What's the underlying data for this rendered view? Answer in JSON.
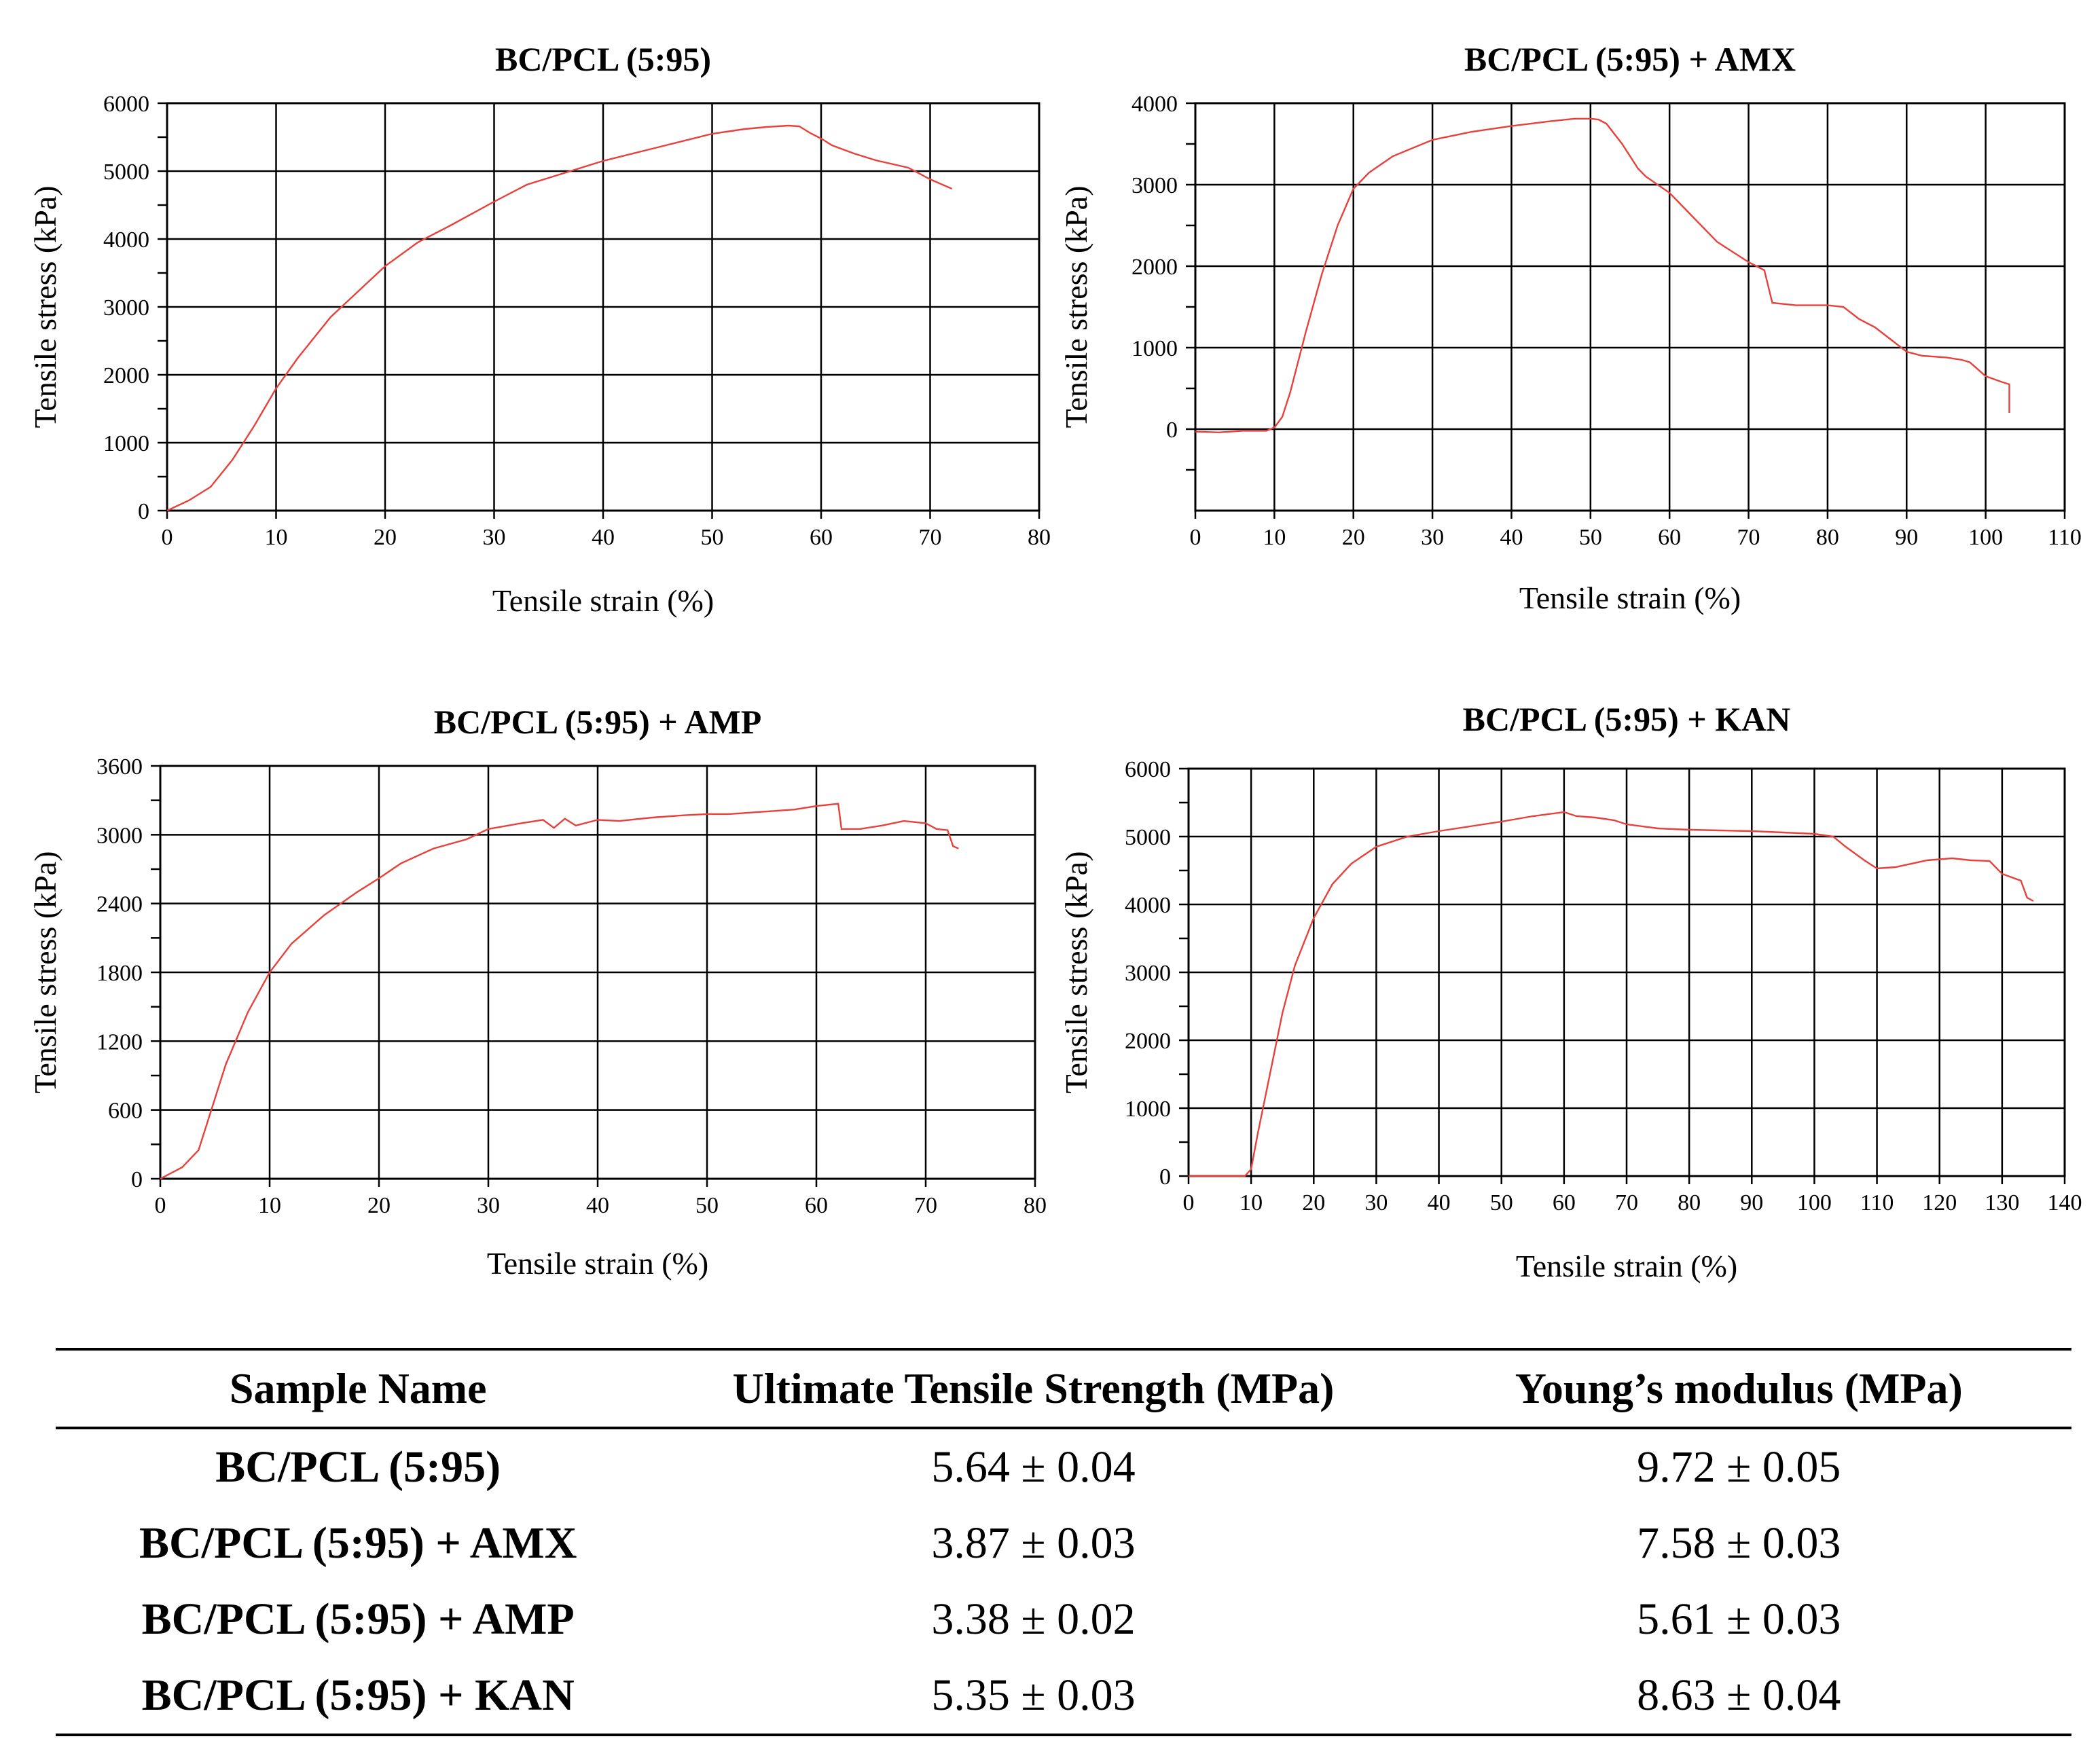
{
  "chart_data": [
    {
      "type": "line",
      "title": "BC/PCL (5:95)",
      "xlabel": "Tensile strain (%)",
      "ylabel": "Tensile stress (kPa)",
      "xlim": [
        0,
        80
      ],
      "ylim": [
        0,
        6000
      ],
      "xticks": [
        0,
        10,
        20,
        30,
        40,
        50,
        60,
        70,
        80
      ],
      "yticks": [
        0,
        1000,
        2000,
        3000,
        4000,
        5000,
        6000
      ],
      "grid": true,
      "series_color": "#e8413c",
      "series": [
        {
          "x": [
            0,
            2,
            4,
            6,
            8,
            10,
            12,
            15,
            18,
            20,
            23,
            26,
            30,
            33,
            36,
            40,
            45,
            50,
            53,
            55,
            57,
            58,
            59,
            60,
            61,
            63,
            65,
            68,
            70,
            72
          ],
          "y": [
            0,
            150,
            350,
            750,
            1250,
            1800,
            2250,
            2850,
            3300,
            3600,
            3950,
            4200,
            4550,
            4800,
            4950,
            5150,
            5350,
            5550,
            5620,
            5650,
            5670,
            5660,
            5560,
            5480,
            5380,
            5260,
            5160,
            5050,
            4880,
            4740
          ]
        }
      ]
    },
    {
      "type": "line",
      "title": "BC/PCL (5:95) + AMX",
      "xlabel": "Tensile strain (%)",
      "ylabel": "Tensile stress (kPa)",
      "xlim": [
        0,
        110
      ],
      "ylim": [
        -1000,
        4000
      ],
      "xticks": [
        0,
        10,
        20,
        30,
        40,
        50,
        60,
        70,
        80,
        90,
        100,
        110
      ],
      "yticks": [
        0,
        1000,
        2000,
        3000,
        4000
      ],
      "grid": true,
      "series_color": "#e8413c",
      "series": [
        {
          "x": [
            0,
            3,
            6,
            9,
            10,
            11,
            12,
            14,
            16,
            18,
            20,
            22,
            25,
            30,
            35,
            40,
            45,
            48,
            50,
            51,
            52,
            54,
            56,
            57,
            60,
            63,
            66,
            70,
            72,
            73,
            76,
            80,
            82,
            84,
            86,
            88,
            90,
            92,
            95,
            97,
            98,
            100,
            102,
            103,
            103
          ],
          "y": [
            -30,
            -40,
            -20,
            -20,
            20,
            150,
            450,
            1200,
            1900,
            2500,
            2950,
            3150,
            3350,
            3550,
            3650,
            3720,
            3780,
            3810,
            3810,
            3800,
            3750,
            3500,
            3200,
            3100,
            2900,
            2600,
            2300,
            2050,
            1950,
            1550,
            1520,
            1520,
            1500,
            1350,
            1250,
            1100,
            950,
            900,
            880,
            850,
            820,
            650,
            580,
            550,
            200
          ]
        }
      ]
    },
    {
      "type": "line",
      "title": "BC/PCL (5:95) + AMP",
      "xlabel": "Tensile strain (%)",
      "ylabel": "Tensile stress (kPa)",
      "xlim": [
        0,
        80
      ],
      "ylim": [
        0,
        3600
      ],
      "xticks": [
        0,
        10,
        20,
        30,
        40,
        50,
        60,
        70,
        80
      ],
      "yticks": [
        0,
        600,
        1200,
        1800,
        2400,
        3000,
        3600
      ],
      "grid": true,
      "series_color": "#e8413c",
      "series": [
        {
          "x": [
            0,
            2,
            3.5,
            5,
            6,
            8,
            10,
            12,
            15,
            18,
            20,
            22,
            25,
            28,
            30,
            33,
            35,
            36,
            37,
            38,
            40,
            42,
            45,
            48,
            50,
            52,
            55,
            58,
            60,
            62,
            62.3,
            64,
            66,
            68,
            70,
            71,
            72,
            72.5,
            73
          ],
          "y": [
            0,
            100,
            250,
            700,
            1000,
            1450,
            1800,
            2050,
            2300,
            2500,
            2620,
            2750,
            2880,
            2960,
            3050,
            3100,
            3130,
            3060,
            3140,
            3080,
            3130,
            3120,
            3150,
            3170,
            3180,
            3180,
            3200,
            3220,
            3250,
            3270,
            3050,
            3050,
            3080,
            3120,
            3100,
            3050,
            3040,
            2900,
            2880
          ]
        }
      ]
    },
    {
      "type": "line",
      "title": "BC/PCL (5:95) + KAN",
      "xlabel": "Tensile strain (%)",
      "ylabel": "Tensile stress (kPa)",
      "xlim": [
        0,
        140
      ],
      "ylim": [
        0,
        6000
      ],
      "xticks": [
        0,
        10,
        20,
        30,
        40,
        50,
        60,
        70,
        80,
        90,
        100,
        110,
        120,
        130,
        140
      ],
      "yticks": [
        0,
        1000,
        2000,
        3000,
        4000,
        5000,
        6000
      ],
      "grid": true,
      "series_color": "#e8413c",
      "series": [
        {
          "x": [
            0,
            5,
            9,
            10,
            11,
            13,
            15,
            17,
            20,
            23,
            26,
            30,
            35,
            40,
            45,
            50,
            55,
            60,
            62,
            65,
            68,
            70,
            75,
            80,
            85,
            90,
            95,
            100,
            103,
            105,
            108,
            110,
            113,
            118,
            122,
            125,
            128,
            130,
            133,
            134,
            135
          ],
          "y": [
            0,
            0,
            0,
            100,
            600,
            1500,
            2400,
            3100,
            3800,
            4300,
            4600,
            4850,
            5000,
            5080,
            5150,
            5220,
            5300,
            5360,
            5300,
            5280,
            5240,
            5180,
            5120,
            5100,
            5090,
            5080,
            5060,
            5040,
            5000,
            4850,
            4650,
            4530,
            4550,
            4650,
            4680,
            4650,
            4640,
            4450,
            4350,
            4100,
            4050
          ]
        }
      ]
    }
  ],
  "table": {
    "headers": [
      "Sample Name",
      "Ultimate Tensile Strength (MPa)",
      "Young’s modulus (MPa)"
    ],
    "rows": [
      {
        "name": "BC/PCL (5:95)",
        "uts": "5.64 ± 0.04",
        "modulus": "9.72 ± 0.05"
      },
      {
        "name": "BC/PCL (5:95) + AMX",
        "uts": "3.87 ± 0.03",
        "modulus": "7.58 ± 0.03"
      },
      {
        "name": "BC/PCL (5:95) + AMP",
        "uts": "3.38 ± 0.02",
        "modulus": "5.61 ± 0.03"
      },
      {
        "name": "BC/PCL (5:95) + KAN",
        "uts": "5.35 ± 0.03",
        "modulus": "8.63 ± 0.04"
      }
    ]
  }
}
